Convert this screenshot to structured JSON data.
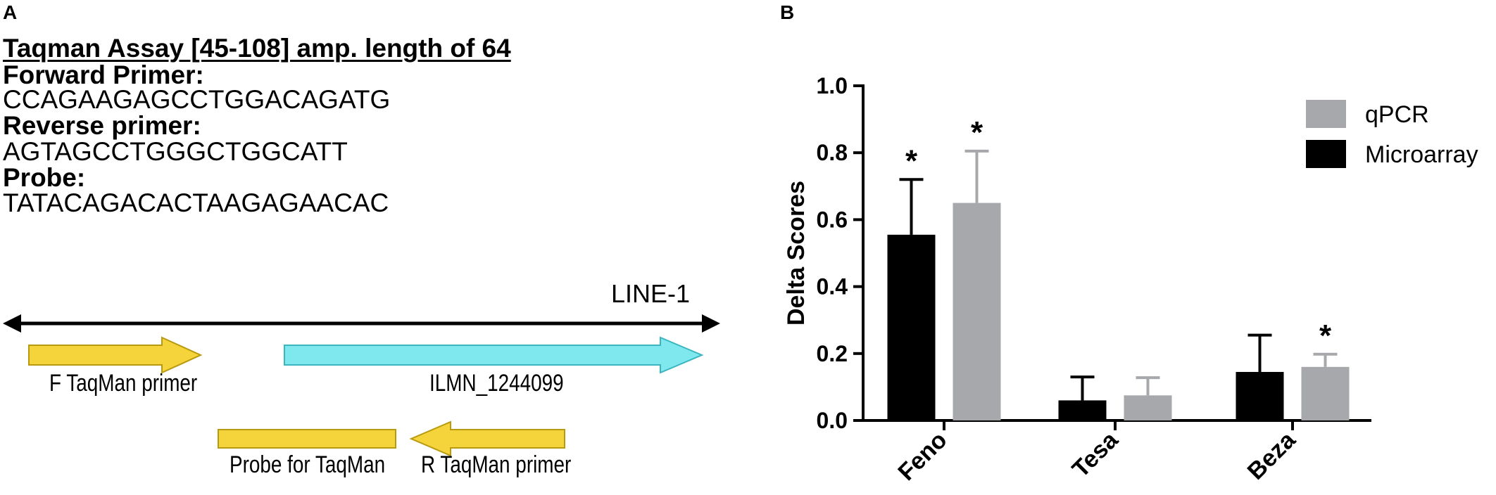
{
  "panel_a": {
    "letter": "A",
    "title": "Taqman Assay [45-108] amp. length of 64",
    "forward_label": "Forward Primer:",
    "forward_seq": "CCAGAAGAGCCTGGACAGATG",
    "reverse_label": "Reverse primer:",
    "reverse_seq": "AGTAGCCTGGGCTGGCATT",
    "probe_label": "Probe:",
    "probe_seq": "TATACAGACACTAAGAGAACAC",
    "diagram": {
      "line_label": "LINE-1",
      "f_primer_label": "F TaqMan primer",
      "ilmn_label": "ILMN_1244099",
      "probe_label": "Probe for TaqMan",
      "r_primer_label": "R TaqMan primer",
      "colors": {
        "primer": "#f5d33a",
        "primer_stroke": "#b89a10",
        "ilmn": "#7fe8ef",
        "ilmn_stroke": "#3bb6c0",
        "line": "#000000"
      }
    }
  },
  "panel_b": {
    "letter": "B"
  },
  "chart_data": {
    "type": "bar",
    "ylabel": "Delta Scores",
    "xlabel": "",
    "ylim": [
      0,
      1.0
    ],
    "yticks": [
      "0.0",
      "0.2",
      "0.4",
      "0.6",
      "0.8",
      "1.0"
    ],
    "categories": [
      "Feno",
      "Tesa",
      "Beza"
    ],
    "legend_position": "top-right",
    "series": [
      {
        "name": "Microarray",
        "color": "#000000",
        "values": [
          0.555,
          0.06,
          0.145
        ],
        "errors": [
          0.165,
          0.07,
          0.11
        ],
        "significant": [
          true,
          false,
          false
        ]
      },
      {
        "name": "qPCR",
        "color": "#a7a8ab",
        "values": [
          0.65,
          0.075,
          0.16
        ],
        "errors": [
          0.155,
          0.053,
          0.038
        ],
        "significant": [
          true,
          false,
          true
        ]
      }
    ],
    "legend_order": [
      "qPCR",
      "Microarray"
    ],
    "significance_marker": "*"
  }
}
